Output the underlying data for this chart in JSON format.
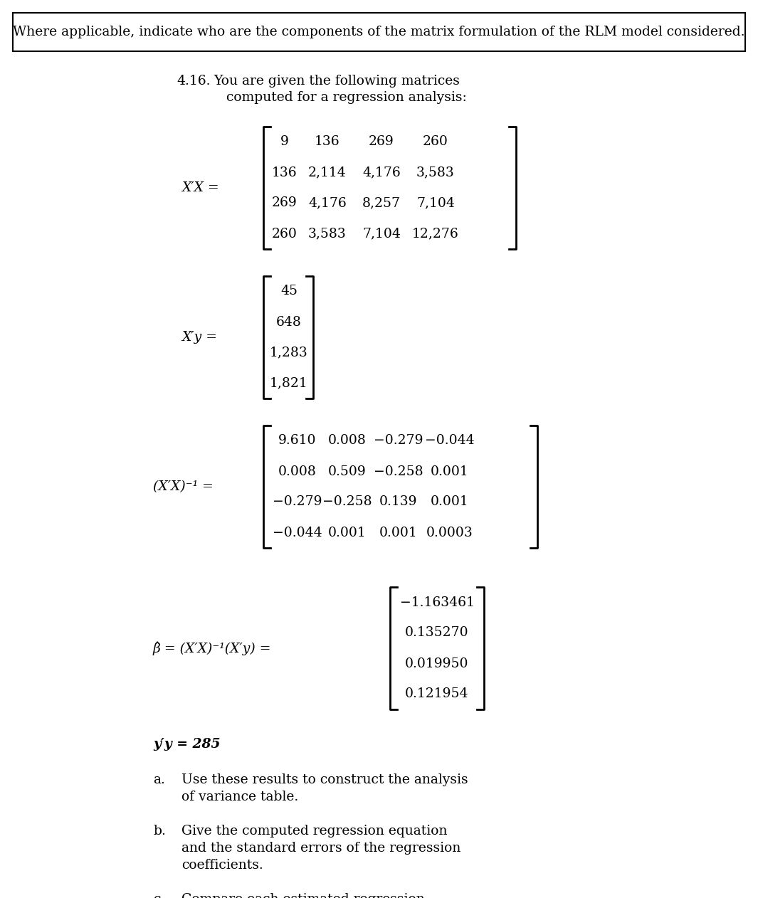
{
  "bg_color": "#ffffff",
  "border_text": "Where applicable, indicate who are the components of the matrix formulation of the RLM model considered.",
  "XX_matrix": [
    [
      "9",
      "136",
      "269",
      "260"
    ],
    [
      "136",
      "2,114",
      "4,176",
      "3,583"
    ],
    [
      "269",
      "4,176",
      "8,257",
      "7,104"
    ],
    [
      "260",
      "3,583",
      "7,104",
      "12,276"
    ]
  ],
  "Xy_matrix": [
    [
      "45"
    ],
    [
      "648"
    ],
    [
      "1,283"
    ],
    [
      "1,821"
    ]
  ],
  "XXinv_matrix": [
    [
      "9.610",
      "0.008",
      "−0.279",
      "−0.044"
    ],
    [
      "0.008",
      "0.509",
      "−0.258",
      "0.001"
    ],
    [
      "−0.279",
      "−0.258",
      "0.139",
      "0.001"
    ],
    [
      "−0.044",
      "0.001",
      "0.001",
      "0.0003"
    ]
  ],
  "beta_matrix": [
    [
      "−1.163461"
    ],
    [
      "0.135270"
    ],
    [
      "0.019950"
    ],
    [
      "0.121954"
    ]
  ]
}
